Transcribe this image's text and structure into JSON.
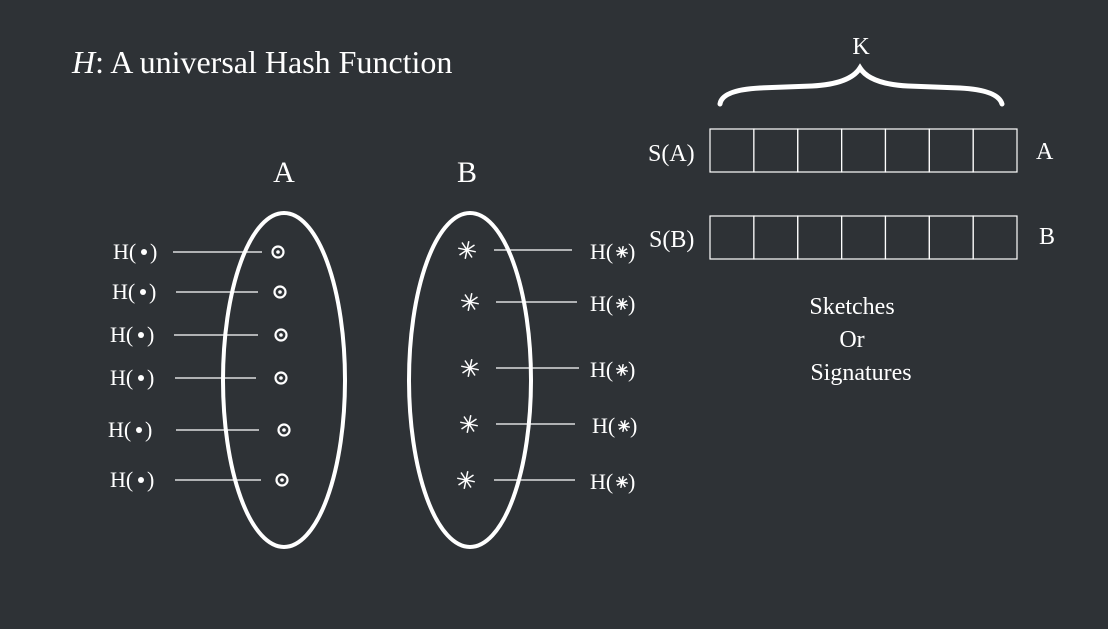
{
  "title": {
    "symbol": "H",
    "rest": ": A universal Hash Function"
  },
  "set_a": {
    "label": "A",
    "hash_labels": [
      "H(",
      "H(",
      "H(",
      "H(",
      "H(",
      "H("
    ]
  },
  "set_b": {
    "label": "B",
    "hash_labels": [
      "H(",
      "H(",
      "H(",
      "H(",
      "H("
    ]
  },
  "brace_label": "K",
  "sketch_a": {
    "name": "S(A)",
    "side_label": "A",
    "cells": 7
  },
  "sketch_b": {
    "name": "S(B)",
    "side_label": "B",
    "cells": 7
  },
  "sketch_caption": [
    "Sketches",
    "Or",
    "Signatures"
  ],
  "colors": {
    "background": "#2e3236",
    "foreground": "#ffffff"
  }
}
